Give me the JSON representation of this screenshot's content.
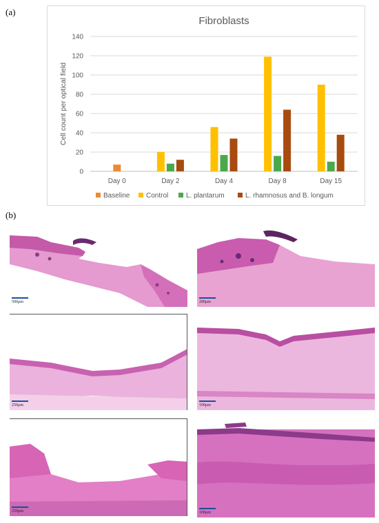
{
  "figure": {
    "panel_a_label": "(a)",
    "panel_b_label": "(b)"
  },
  "chart_data": {
    "type": "bar",
    "title": "Fibroblasts",
    "xlabel": "",
    "ylabel": "Cell count per optical field",
    "ylim": [
      0,
      140
    ],
    "yticks": [
      0,
      20,
      40,
      60,
      80,
      100,
      120,
      140
    ],
    "categories": [
      "Day 0",
      "Day 2",
      "Day 4",
      "Day 8",
      "Day 15"
    ],
    "grid": true,
    "legend_position": "bottom",
    "series": [
      {
        "name": "Baseline",
        "color": "#ED8B30",
        "values": [
          7,
          null,
          null,
          null,
          null
        ]
      },
      {
        "name": "Control",
        "color": "#FFC000",
        "values": [
          null,
          20,
          46,
          119,
          90
        ]
      },
      {
        "name": "L. plantarum",
        "color": "#4CA84C",
        "values": [
          null,
          8,
          17,
          16,
          10
        ]
      },
      {
        "name": "L. rhamnosus and B. longum",
        "color": "#A84B10",
        "values": [
          null,
          12,
          34,
          64,
          38
        ]
      }
    ]
  },
  "micrographs": [
    {
      "scale": "500μm"
    },
    {
      "scale": "200μm"
    },
    {
      "scale": "250μm"
    },
    {
      "scale": "100μm"
    },
    {
      "scale": "250μm"
    },
    {
      "scale": "100μm"
    }
  ]
}
